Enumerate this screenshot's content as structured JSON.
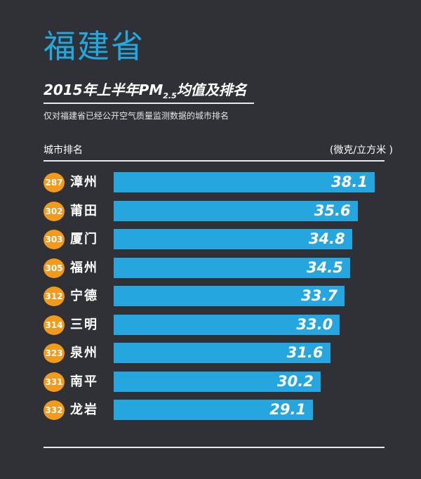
{
  "province": "福建省",
  "subtitle": {
    "lead": "2015年上半年PM",
    "sub": "2.5",
    "tail": "均值及排名"
  },
  "note": "仅对福建省已经公开空气质量监测数据的城市排名",
  "column_left": "城市排名",
  "column_right": "(微克/立方米 )",
  "colors": {
    "background": "#2f3136",
    "title": "#22a8df",
    "bar": "#26a6de",
    "rank_badge": "#f19a1c"
  },
  "chart_data": {
    "type": "bar",
    "orientation": "horizontal",
    "categories": [
      "漳州",
      "莆田",
      "厦门",
      "福州",
      "宁德",
      "三明",
      "泉州",
      "南平",
      "龙岩"
    ],
    "ranks": [
      "287",
      "302",
      "303",
      "305",
      "312",
      "314",
      "323",
      "331",
      "332"
    ],
    "values": [
      38.1,
      35.6,
      34.8,
      34.5,
      33.7,
      33.0,
      31.6,
      30.2,
      29.1
    ],
    "value_labels": [
      "38.1",
      "35.6",
      "34.8",
      "34.5",
      "33.7",
      "33.0",
      "31.6",
      "30.2",
      "29.1"
    ],
    "grid": false
  }
}
